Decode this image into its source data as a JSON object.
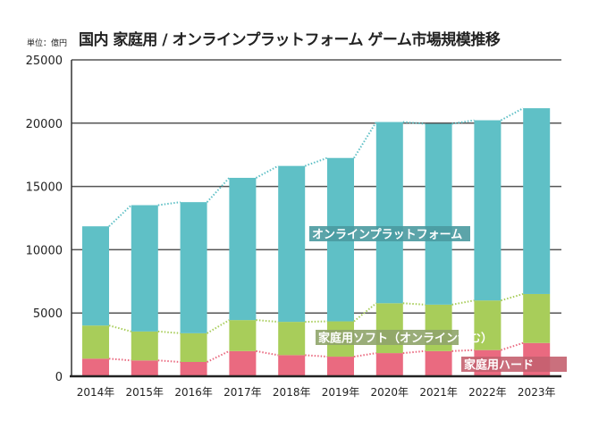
{
  "chart_data": {
    "type": "bar",
    "stacked": true,
    "title": "国内 家庭用 / オンラインプラットフォーム ゲーム市場規模推移",
    "unit_label": "単位：億円",
    "categories": [
      "2014年",
      "2015年",
      "2016年",
      "2017年",
      "2018年",
      "2019年",
      "2020年",
      "2021年",
      "2022年",
      "2023年"
    ],
    "series": [
      {
        "name": "家庭用ハード",
        "color": "#ea6a80",
        "values": [
          1390,
          1250,
          1130,
          1990,
          1670,
          1550,
          1830,
          1990,
          2070,
          2630
        ]
      },
      {
        "name": "家庭用ソフト（オンライン含む）",
        "color": "#a8cd5a",
        "values": [
          2620,
          2290,
          2270,
          2450,
          2630,
          2790,
          3940,
          3670,
          3920,
          3870
        ]
      },
      {
        "name": "オンラインプラットフォーム",
        "color": "#5fc0c6",
        "values": [
          7840,
          9980,
          10360,
          11240,
          12320,
          12910,
          14320,
          14290,
          14240,
          14680
        ]
      }
    ],
    "series_label_colors": [
      "#c4606f",
      "#8fa46a",
      "#4a9aa0"
    ],
    "ylim": [
      0,
      25000
    ],
    "yticks": [
      "0",
      "5000",
      "10000",
      "15000",
      "20000",
      "25000"
    ],
    "grid": true,
    "trend_lines": "dotted"
  }
}
